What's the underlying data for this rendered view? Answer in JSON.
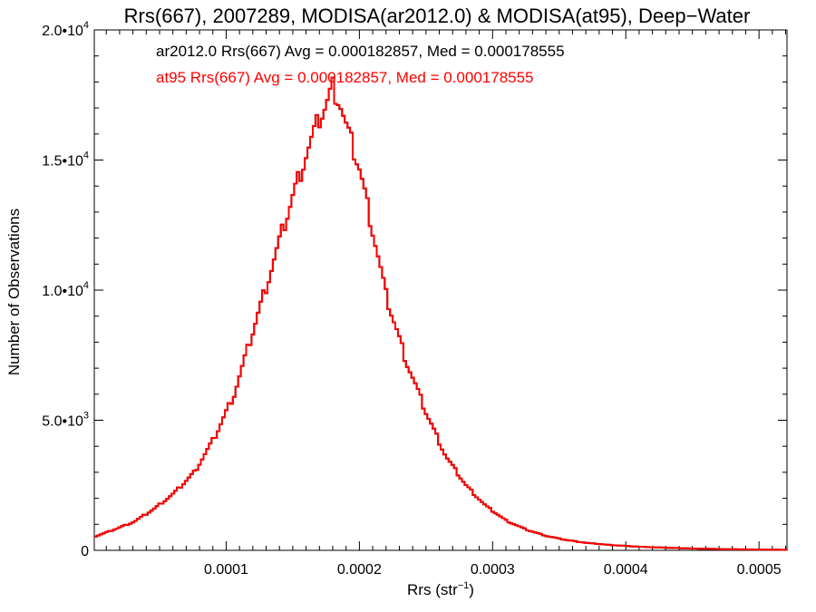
{
  "chart_data": {
    "type": "histogram",
    "title": "Rrs(667), 2007289, MODISA(ar2012.0) & MODISA(at95), Deep−Water",
    "xlabel": "Rrs (str",
    "xlabel_sup": "−1",
    "xlabel_close": ")",
    "ylabel": "Number of Observations",
    "xlim": [
      1e-06,
      0.000521
    ],
    "ylim": [
      0,
      20000
    ],
    "xticks": [
      {
        "value": 0.0001,
        "label": "0.0001"
      },
      {
        "value": 0.0002,
        "label": "0.0002"
      },
      {
        "value": 0.0003,
        "label": "0.0003"
      },
      {
        "value": 0.0004,
        "label": "0.0004"
      },
      {
        "value": 0.0005,
        "label": "0.0005"
      }
    ],
    "yticks": [
      {
        "value": 0,
        "mant": "0",
        "exp": ""
      },
      {
        "value": 5000,
        "mant": "5.0•10",
        "exp": "3"
      },
      {
        "value": 10000,
        "mant": "1.0•10",
        "exp": "4"
      },
      {
        "value": 15000,
        "mant": "1.5•10",
        "exp": "4"
      },
      {
        "value": 20000,
        "mant": "2.0•10",
        "exp": "4"
      }
    ],
    "annotations": [
      {
        "text": "ar2012.0 Rrs(667) Avg = 0.000182857, Med = 0.000178555",
        "color": "#000000"
      },
      {
        "text": "at95 Rrs(667) Avg = 0.000182857, Med = 0.000178555",
        "color": "#ff0000"
      }
    ],
    "series": [
      {
        "name": "ar2012.0",
        "color": "#000000",
        "x": [
          0.0,
          1.6e-05,
          3.1e-05,
          4.6e-05,
          6.1e-05,
          7.6e-05,
          9.1e-05,
          0.000106,
          0.00012,
          0.000135,
          0.00015,
          0.00016,
          0.00017,
          0.000175,
          0.00018,
          0.000185,
          0.00019,
          0.0002,
          0.00021,
          0.00022,
          0.000235,
          0.00025,
          0.000265,
          0.00028,
          0.000295,
          0.00031,
          0.000325,
          0.00034,
          0.000355,
          0.00037,
          0.00039,
          0.00041,
          0.00043,
          0.00045,
          0.00047,
          0.00049,
          0.00051,
          0.000521
        ],
        "y": [
          500,
          800,
          1100,
          1600,
          2200,
          3000,
          4300,
          6000,
          8400,
          11000,
          13600,
          15200,
          16600,
          17100,
          17800,
          17300,
          16300,
          14700,
          12300,
          9800,
          7300,
          5300,
          3600,
          2500,
          1700,
          1150,
          800,
          560,
          400,
          290,
          200,
          140,
          100,
          70,
          50,
          35,
          25,
          20
        ]
      },
      {
        "name": "at95",
        "color": "#ff0000",
        "x": [
          0.0,
          1.6e-05,
          3.1e-05,
          4.6e-05,
          6.1e-05,
          7.6e-05,
          9.1e-05,
          0.000106,
          0.00012,
          0.000135,
          0.00015,
          0.00016,
          0.00017,
          0.000175,
          0.00018,
          0.000185,
          0.00019,
          0.0002,
          0.00021,
          0.00022,
          0.000235,
          0.00025,
          0.000265,
          0.00028,
          0.000295,
          0.00031,
          0.000325,
          0.00034,
          0.000355,
          0.00037,
          0.00039,
          0.00041,
          0.00043,
          0.00045,
          0.00047,
          0.00049,
          0.00051,
          0.000521
        ],
        "y": [
          500,
          800,
          1100,
          1600,
          2200,
          3000,
          4300,
          6000,
          8400,
          11000,
          13600,
          15200,
          16600,
          17100,
          17800,
          17300,
          16300,
          14700,
          12300,
          9800,
          7300,
          5300,
          3600,
          2500,
          1700,
          1150,
          800,
          560,
          400,
          290,
          200,
          140,
          100,
          70,
          50,
          35,
          25,
          20
        ]
      }
    ],
    "grid": false,
    "legend": "top-left annotations"
  }
}
